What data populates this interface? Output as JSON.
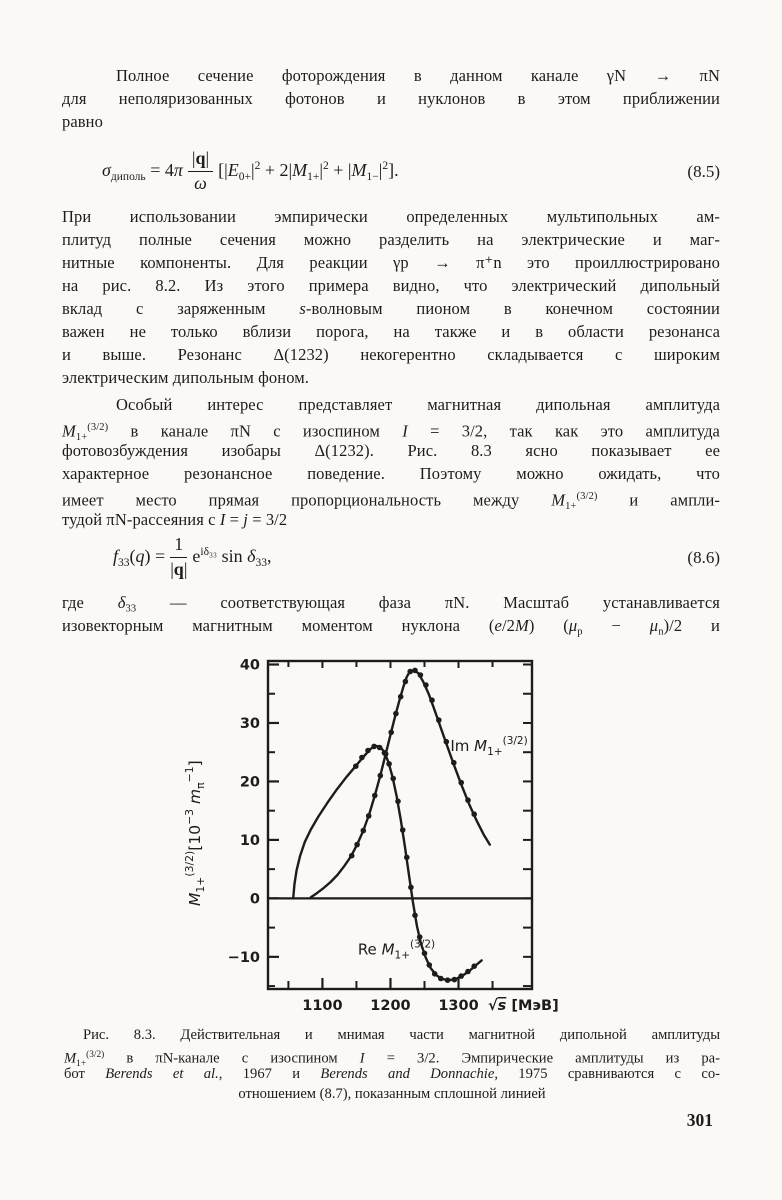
{
  "page": {
    "number": "301",
    "background": "#faf9f6",
    "ink": "#1c1c1c"
  },
  "paragraphs": {
    "p1": {
      "lines": [
        "Полное сечение фоторождения в данном канале γN → πN",
        "для неполяризованных фотонов и нуклонов в этом приближении",
        "равно"
      ]
    },
    "p2": {
      "lines": [
        "При использовании эмпирически определенных мультипольных ам-",
        "плитуд полные сечения можно разделить на электрические и маг-",
        "нитные компоненты. Для реакции γp → π⁺n это проиллюстрировано",
        "на рис. 8.2. Из этого примера видно, что электрический дипольный",
        [
          {
            "t": "вклад с заряженным "
          },
          {
            "t": "s",
            "st": "i"
          },
          {
            "t": "-волновым пионом в конечном состоянии"
          }
        ],
        "важен не только вблизи порога, на также и в области резонанса",
        "и выше. Резонанс Δ(1232) некогерентно складывается с широким",
        "электрическим дипольным фоном."
      ]
    },
    "p3": {
      "lines": [
        "Особый интерес представляет магнитная дипольная амплитуда",
        [
          {
            "t": "M",
            "st": "i"
          },
          {
            "t": "1+",
            "st": "sub"
          },
          {
            "t": "(3/2)",
            "st": "sup"
          },
          {
            "t": " в канале πN с изоспином "
          },
          {
            "t": "I",
            "st": "i"
          },
          {
            "t": " = 3/2, так как это амплитуда"
          }
        ],
        "фотовозбуждения изобары Δ(1232). Рис. 8.3 ясно показывает ее",
        "характерное резонансное поведение. Поэтому можно ожидать, что",
        [
          {
            "t": "имеет место прямая пропорциональность между "
          },
          {
            "t": "M",
            "st": "i"
          },
          {
            "t": "1+",
            "st": "sub"
          },
          {
            "t": "(3/2)",
            "st": "sup"
          },
          {
            "t": " и ампли-"
          }
        ],
        [
          {
            "t": "тудой πN-рассеяния с "
          },
          {
            "t": "I",
            "st": "i"
          },
          {
            "t": " = "
          },
          {
            "t": "j",
            "st": "i"
          },
          {
            "t": " = 3/2"
          }
        ]
      ]
    },
    "p4": {
      "lines": [
        [
          {
            "t": "где "
          },
          {
            "t": "δ",
            "st": "i"
          },
          {
            "t": "33",
            "st": "sub"
          },
          {
            "t": " — соответствующая фаза πN. Масштаб устанавливается"
          }
        ],
        [
          {
            "t": "изовекторным магнитным моментом нуклона ("
          },
          {
            "t": "e",
            "st": "i"
          },
          {
            "t": "/2"
          },
          {
            "t": "M",
            "st": "i"
          },
          {
            "t": ") ("
          },
          {
            "t": "μ",
            "st": "i"
          },
          {
            "t": "p",
            "st": "sub"
          },
          {
            "t": " − "
          },
          {
            "t": "μ",
            "st": "i"
          },
          {
            "t": "n",
            "st": "sub"
          },
          {
            "t": ")/2 и"
          }
        ]
      ]
    }
  },
  "equations": {
    "eq85": {
      "lhs": [
        {
          "t": "σ",
          "st": "i"
        },
        {
          "t": "диполь",
          "st": "sub"
        },
        {
          "t": " = 4"
        },
        {
          "t": "π",
          "st": "i"
        }
      ],
      "frac_num": [
        {
          "t": "|"
        },
        {
          "t": "q",
          "st": "b"
        },
        {
          "t": "|"
        }
      ],
      "frac_den": [
        {
          "t": "ω",
          "st": "i"
        }
      ],
      "rhs": [
        {
          "t": " [|"
        },
        {
          "t": "E",
          "st": "i"
        },
        {
          "t": "0+",
          "st": "sub"
        },
        {
          "t": "|"
        },
        {
          "t": "2",
          "st": "sup"
        },
        {
          "t": " + 2|"
        },
        {
          "t": "M",
          "st": "i"
        },
        {
          "t": "1+",
          "st": "sub"
        },
        {
          "t": "|"
        },
        {
          "t": "2",
          "st": "sup"
        },
        {
          "t": " + |"
        },
        {
          "t": "M",
          "st": "i"
        },
        {
          "t": "1−",
          "st": "sub"
        },
        {
          "t": "|"
        },
        {
          "t": "2",
          "st": "sup"
        },
        {
          "t": "]."
        }
      ],
      "number": "(8.5)"
    },
    "eq86": {
      "lhs": [
        {
          "t": "f",
          "st": "i"
        },
        {
          "t": "33",
          "st": "sub"
        },
        {
          "t": "("
        },
        {
          "t": "q",
          "st": "i"
        },
        {
          "t": ") = "
        }
      ],
      "frac_num": [
        {
          "t": "1"
        }
      ],
      "frac_den": [
        {
          "t": "|"
        },
        {
          "t": "q",
          "st": "b"
        },
        {
          "t": "|"
        }
      ],
      "rhs": [
        {
          "t": " e"
        },
        {
          "t": "iδ₃₃",
          "st": "sup"
        },
        {
          "t": " sin "
        },
        {
          "t": "δ",
          "st": "i"
        },
        {
          "t": "33",
          "st": "sub"
        },
        {
          "t": ","
        }
      ],
      "number": "(8.6)"
    }
  },
  "figure_caption": {
    "lines": [
      [
        {
          "t": "Рис. 8.3. Действительная и мнимая части магнитной дипольной амплитуды"
        }
      ],
      [
        {
          "t": "M",
          "st": "i"
        },
        {
          "t": "1+",
          "st": "sub"
        },
        {
          "t": "(3/2)",
          "st": "sup"
        },
        {
          "t": " в πN-канале с изоспином "
        },
        {
          "t": "I",
          "st": "i"
        },
        {
          "t": " = 3/2. Эмпирические амплитуды из ра-"
        }
      ],
      [
        {
          "t": "бот "
        },
        {
          "t": "Berends et al.",
          "st": "i"
        },
        {
          "t": ", 1967 и "
        },
        {
          "t": "Berends and Donnachie",
          "st": "i"
        },
        {
          "t": ", 1975 сравниваются с со-"
        }
      ],
      "отношением (8.7), показанным сплошной линией"
    ]
  },
  "chart_data": {
    "type": "line",
    "title": "",
    "xlabel": "√s [МэВ]",
    "xlabel_rich": [
      {
        "t": "√"
      },
      {
        "t": "s",
        "st": "io"
      },
      {
        "t": " [МэВ]"
      }
    ],
    "ylabel": "M1+(3/2) [10−3 mπ−1]",
    "ylabel_rich": [
      {
        "t": "M",
        "st": "i"
      },
      {
        "t": "1+",
        "st": "sub"
      },
      {
        "t": "(3/2)",
        "st": "sup"
      },
      {
        "t": "["
      },
      {
        "t": "10"
      },
      {
        "t": "−3",
        "st": "sup"
      },
      {
        "t": " "
      },
      {
        "t": "m",
        "st": "i"
      },
      {
        "t": "π",
        "st": "sub"
      },
      {
        "t": "−1",
        "st": "sup"
      },
      {
        "t": "]"
      }
    ],
    "xlim": [
      1020,
      1408
    ],
    "ylim": [
      -15.5,
      40.6
    ],
    "x_major_ticks": [
      1100,
      1200,
      1300
    ],
    "x_minor_ticks": [
      1050,
      1150,
      1250,
      1350
    ],
    "y_major_ticks": [
      -10,
      0,
      10,
      20,
      30,
      40
    ],
    "y_minor_ticks": [
      -15,
      -5,
      5,
      15,
      25,
      35
    ],
    "grid": false,
    "frame": true,
    "legend_position": "inline-labels",
    "series": [
      {
        "name": "Im M1+(3/2)",
        "label_rich": [
          {
            "t": "Im "
          },
          {
            "t": "M",
            "st": "i"
          },
          {
            "t": "1+",
            "st": "sub"
          },
          {
            "t": "(3/2)",
            "st": "sup"
          }
        ],
        "label_pos": [
          1288,
          25.2
        ],
        "curve": [
          [
            1083,
            0.2
          ],
          [
            1092,
            0.9
          ],
          [
            1102,
            1.8
          ],
          [
            1112,
            2.8
          ],
          [
            1122,
            4.0
          ],
          [
            1132,
            5.5
          ],
          [
            1142,
            7.2
          ],
          [
            1151,
            9.2
          ],
          [
            1160,
            11.6
          ],
          [
            1169,
            14.5
          ],
          [
            1177,
            17.6
          ],
          [
            1185,
            21.0
          ],
          [
            1193,
            24.7
          ],
          [
            1200,
            28.0
          ],
          [
            1207,
            31.2
          ],
          [
            1213,
            33.8
          ],
          [
            1219,
            36.2
          ],
          [
            1224,
            37.9
          ],
          [
            1229,
            38.9
          ],
          [
            1235,
            39.0
          ],
          [
            1241,
            38.5
          ],
          [
            1248,
            37.1
          ],
          [
            1256,
            35.0
          ],
          [
            1264,
            32.5
          ],
          [
            1273,
            29.5
          ],
          [
            1283,
            26.2
          ],
          [
            1294,
            22.6
          ],
          [
            1305,
            19.2
          ],
          [
            1316,
            16.0
          ],
          [
            1327,
            13.2
          ],
          [
            1337,
            10.9
          ],
          [
            1346,
            9.2
          ]
        ],
        "dots": [
          [
            1143,
            7.3
          ],
          [
            1151,
            9.2
          ],
          [
            1160,
            11.6
          ],
          [
            1168,
            14.1
          ],
          [
            1177,
            17.6
          ],
          [
            1185,
            21.0
          ],
          [
            1193,
            24.7
          ],
          [
            1201,
            28.4
          ],
          [
            1208,
            31.6
          ],
          [
            1215,
            34.5
          ],
          [
            1222,
            37.1
          ],
          [
            1229,
            38.8
          ],
          [
            1236,
            39.0
          ],
          [
            1244,
            38.2
          ],
          [
            1252,
            36.5
          ],
          [
            1261,
            33.9
          ],
          [
            1271,
            30.5
          ],
          [
            1282,
            26.8
          ],
          [
            1293,
            23.2
          ],
          [
            1304,
            19.8
          ],
          [
            1314,
            16.8
          ],
          [
            1323,
            14.4
          ]
        ]
      },
      {
        "name": "Re M1+(3/2)",
        "label_rich": [
          {
            "t": "Re "
          },
          {
            "t": "M",
            "st": "i"
          },
          {
            "t": "1+",
            "st": "sub"
          },
          {
            "t": "(3/2)",
            "st": "sup"
          }
        ],
        "label_pos": [
          1152,
          -9.6
        ],
        "curve": [
          [
            1057,
            0
          ],
          [
            1059,
            2.5
          ],
          [
            1062,
            4.8
          ],
          [
            1067,
            7.2
          ],
          [
            1074,
            9.6
          ],
          [
            1083,
            11.8
          ],
          [
            1094,
            14.0
          ],
          [
            1107,
            16.3
          ],
          [
            1121,
            18.6
          ],
          [
            1135,
            20.7
          ],
          [
            1148,
            22.5
          ],
          [
            1160,
            24.2
          ],
          [
            1170,
            25.5
          ],
          [
            1178,
            26.1
          ],
          [
            1185,
            25.9
          ],
          [
            1191,
            25.0
          ],
          [
            1197,
            23.3
          ],
          [
            1203,
            20.8
          ],
          [
            1209,
            17.5
          ],
          [
            1215,
            13.5
          ],
          [
            1221,
            9.0
          ],
          [
            1227,
            4.2
          ],
          [
            1233,
            -0.6
          ],
          [
            1239,
            -4.8
          ],
          [
            1245,
            -7.8
          ],
          [
            1252,
            -10.2
          ],
          [
            1259,
            -11.9
          ],
          [
            1267,
            -13.1
          ],
          [
            1276,
            -13.8
          ],
          [
            1286,
            -14.0
          ],
          [
            1296,
            -13.8
          ],
          [
            1306,
            -13.2
          ],
          [
            1316,
            -12.4
          ],
          [
            1326,
            -11.4
          ],
          [
            1334,
            -10.6
          ]
        ],
        "dots": [
          [
            1149,
            22.6
          ],
          [
            1158,
            24.1
          ],
          [
            1167,
            25.3
          ],
          [
            1176,
            26.0
          ],
          [
            1184,
            25.8
          ],
          [
            1191,
            24.9
          ],
          [
            1198,
            23.0
          ],
          [
            1204,
            20.5
          ],
          [
            1211,
            16.6
          ],
          [
            1218,
            11.7
          ],
          [
            1224,
            7.0
          ],
          [
            1230,
            1.9
          ],
          [
            1236,
            -2.9
          ],
          [
            1243,
            -6.6
          ],
          [
            1250,
            -9.4
          ],
          [
            1257,
            -11.4
          ],
          [
            1265,
            -12.9
          ],
          [
            1274,
            -13.7
          ],
          [
            1284,
            -14.0
          ],
          [
            1294,
            -13.9
          ],
          [
            1304,
            -13.3
          ],
          [
            1314,
            -12.5
          ],
          [
            1323,
            -11.6
          ]
        ]
      }
    ]
  }
}
